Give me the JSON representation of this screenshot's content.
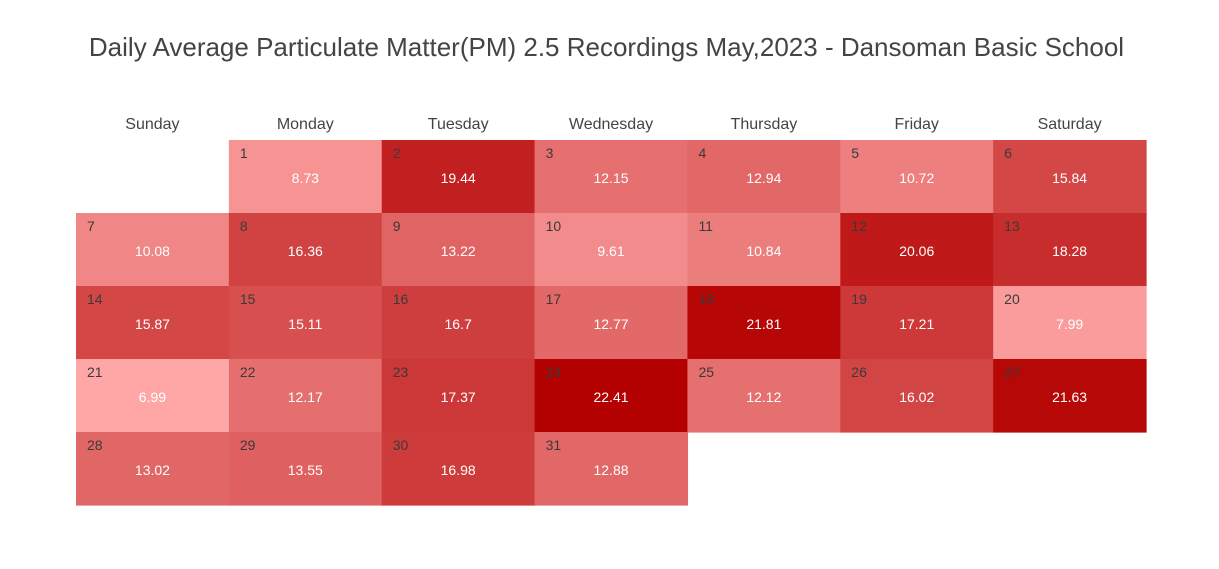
{
  "chart_data": {
    "type": "heatmap",
    "title": "Daily Average Particulate Matter(PM) 2.5 Recordings May,2023 - Dansoman Basic School",
    "weekdays": [
      "Sunday",
      "Monday",
      "Tuesday",
      "Wednesday",
      "Thursday",
      "Friday",
      "Saturday"
    ],
    "first_weekday_index": 1,
    "color_scale": {
      "min_color": "#ffa7a7",
      "max_color": "#b30000",
      "min": 6.99,
      "max": 22.41
    },
    "days": [
      {
        "day": 1,
        "value": 8.73
      },
      {
        "day": 2,
        "value": 19.44
      },
      {
        "day": 3,
        "value": 12.15
      },
      {
        "day": 4,
        "value": 12.94
      },
      {
        "day": 5,
        "value": 10.72
      },
      {
        "day": 6,
        "value": 15.84
      },
      {
        "day": 7,
        "value": 10.08
      },
      {
        "day": 8,
        "value": 16.36
      },
      {
        "day": 9,
        "value": 13.22
      },
      {
        "day": 10,
        "value": 9.61
      },
      {
        "day": 11,
        "value": 10.84
      },
      {
        "day": 12,
        "value": 20.06
      },
      {
        "day": 13,
        "value": 18.28
      },
      {
        "day": 14,
        "value": 15.87
      },
      {
        "day": 15,
        "value": 15.11
      },
      {
        "day": 16,
        "value": 16.7
      },
      {
        "day": 17,
        "value": 12.77
      },
      {
        "day": 18,
        "value": 21.81
      },
      {
        "day": 19,
        "value": 17.21
      },
      {
        "day": 20,
        "value": 7.99
      },
      {
        "day": 21,
        "value": 6.99
      },
      {
        "day": 22,
        "value": 12.17
      },
      {
        "day": 23,
        "value": 17.37
      },
      {
        "day": 24,
        "value": 22.41
      },
      {
        "day": 25,
        "value": 12.12
      },
      {
        "day": 26,
        "value": 16.02
      },
      {
        "day": 27,
        "value": 21.63
      },
      {
        "day": 28,
        "value": 13.02
      },
      {
        "day": 29,
        "value": 13.55
      },
      {
        "day": 30,
        "value": 16.98
      },
      {
        "day": 31,
        "value": 12.88
      }
    ]
  }
}
